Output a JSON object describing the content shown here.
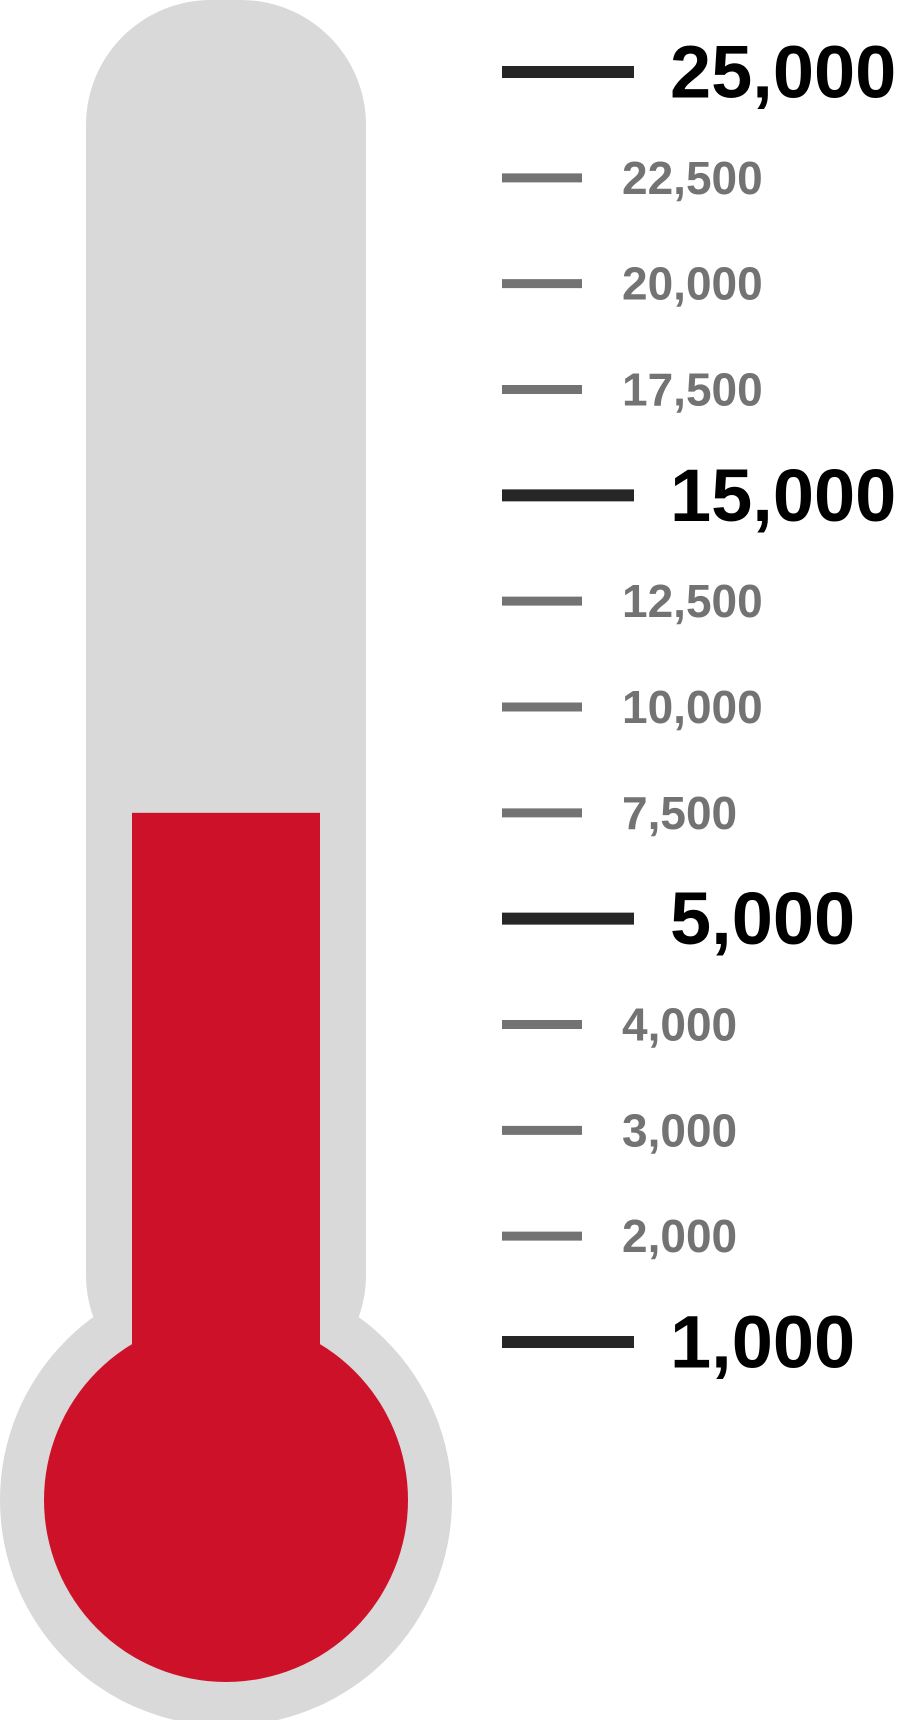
{
  "chart_data": {
    "type": "thermometer",
    "value": 7500,
    "colors": {
      "fill": "#cc1129",
      "tube": "#d9d9d9",
      "major_tick": "#262626",
      "minor_tick": "#737373"
    },
    "ticks": [
      {
        "value": 25000,
        "label": "25,000",
        "major": true
      },
      {
        "value": 22500,
        "label": "22,500",
        "major": false
      },
      {
        "value": 20000,
        "label": "20,000",
        "major": false
      },
      {
        "value": 17500,
        "label": "17,500",
        "major": false
      },
      {
        "value": 15000,
        "label": "15,000",
        "major": true
      },
      {
        "value": 12500,
        "label": "12,500",
        "major": false
      },
      {
        "value": 10000,
        "label": "10,000",
        "major": false
      },
      {
        "value": 7500,
        "label": "7,500",
        "major": false
      },
      {
        "value": 5000,
        "label": "5,000",
        "major": true
      },
      {
        "value": 4000,
        "label": "4,000",
        "major": false
      },
      {
        "value": 3000,
        "label": "3,000",
        "major": false
      },
      {
        "value": 2000,
        "label": "2,000",
        "major": false
      },
      {
        "value": 1000,
        "label": "1,000",
        "major": true
      }
    ]
  }
}
